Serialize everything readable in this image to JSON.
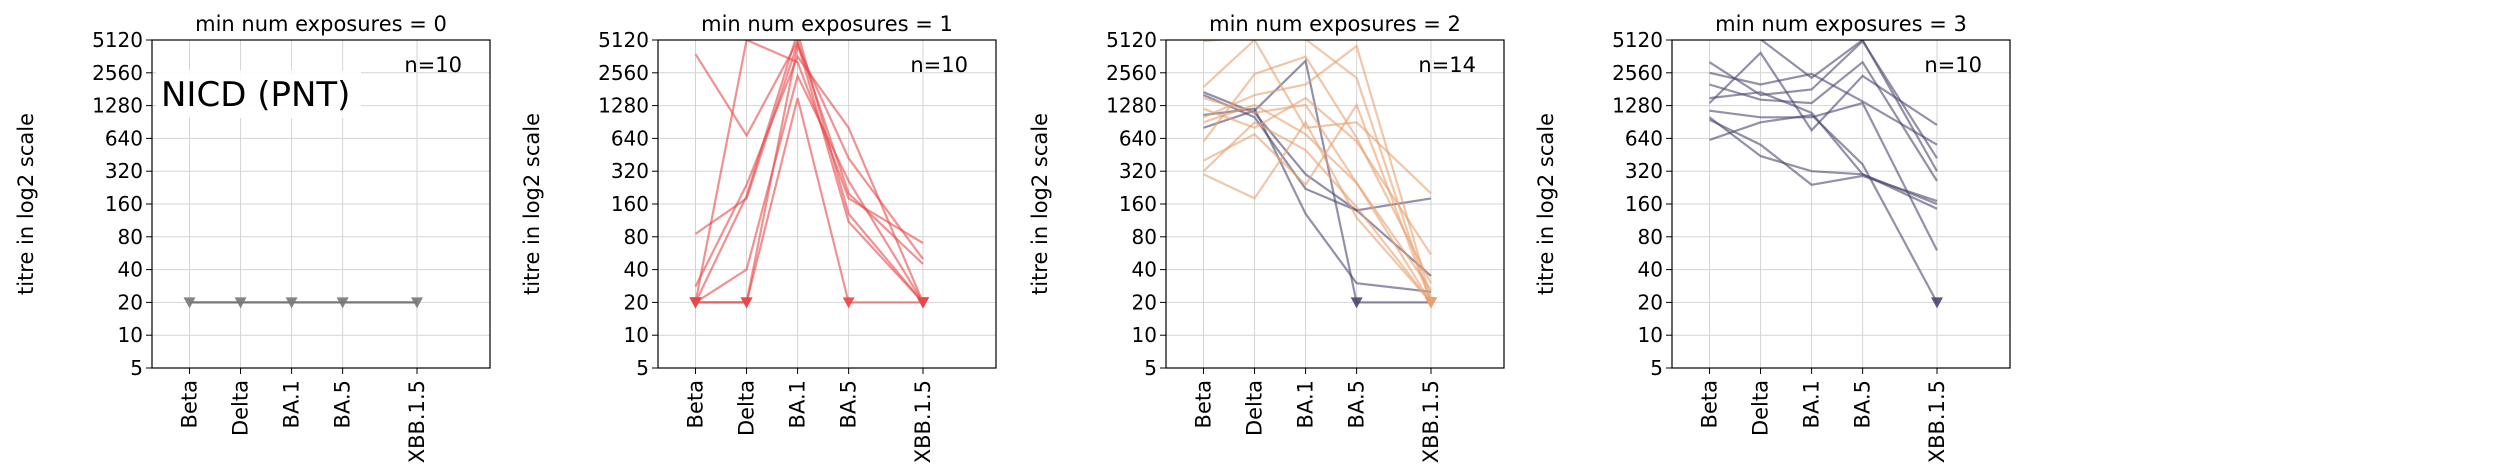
{
  "figure_label": "NICD (PNT)",
  "chart_data": [
    {
      "type": "line",
      "title": "min num exposures = 0",
      "ylabel": "titre in log2 scale",
      "xlabel": "",
      "categories": [
        "Beta",
        "Delta",
        "BA.1",
        "BA.5",
        "XBB.1.5"
      ],
      "yticks": [
        5,
        10,
        20,
        40,
        80,
        160,
        320,
        640,
        1280,
        2560,
        5120
      ],
      "ylim": [
        5,
        5120
      ],
      "yscale": "log2",
      "grid": true,
      "annotation": "n=10",
      "color": "#777777",
      "series": [
        {
          "values": [
            20,
            20,
            20,
            20,
            20
          ],
          "censored": [
            true,
            true,
            true,
            true,
            true
          ]
        }
      ]
    },
    {
      "type": "line",
      "title": "min num exposures = 1",
      "ylabel": "titre in log2 scale",
      "xlabel": "",
      "categories": [
        "Beta",
        "Delta",
        "BA.1",
        "BA.5",
        "XBB.1.5"
      ],
      "yticks": [
        5,
        10,
        20,
        40,
        80,
        160,
        320,
        640,
        1280,
        2560,
        5120
      ],
      "ylim": [
        5,
        5120
      ],
      "yscale": "log2",
      "grid": true,
      "annotation": "n=10",
      "color": "#e8474a",
      "series": [
        {
          "values": [
            20,
            20,
            1500,
            20,
            20
          ],
          "censored": [
            true,
            true,
            false,
            true,
            true
          ]
        },
        {
          "values": [
            3800,
            680,
            5000,
            200,
            45
          ],
          "censored": [
            false,
            false,
            false,
            false,
            false
          ]
        },
        {
          "values": [
            85,
            180,
            4800,
            110,
            20
          ],
          "censored": [
            false,
            false,
            false,
            false,
            true
          ]
        },
        {
          "values": [
            28,
            240,
            3600,
            800,
            20
          ],
          "censored": [
            false,
            false,
            false,
            false,
            true
          ]
        },
        {
          "values": [
            20,
            5120,
            3200,
            180,
            70
          ],
          "censored": [
            true,
            false,
            false,
            false,
            false
          ]
        },
        {
          "values": [
            20,
            40,
            2400,
            260,
            20
          ],
          "censored": [
            true,
            false,
            false,
            false,
            true
          ]
        },
        {
          "values": [
            20,
            190,
            6000,
            130,
            20
          ],
          "censored": [
            true,
            false,
            false,
            false,
            true
          ]
        },
        {
          "values": [
            20,
            20,
            4500,
            420,
            50
          ],
          "censored": [
            true,
            true,
            false,
            false,
            false
          ]
        }
      ]
    },
    {
      "type": "line",
      "title": "min num exposures = 2",
      "ylabel": "titre in log2 scale",
      "xlabel": "",
      "categories": [
        "Beta",
        "Delta",
        "BA.1",
        "BA.5",
        "XBB.1.5"
      ],
      "yticks": [
        5,
        10,
        20,
        40,
        80,
        160,
        320,
        640,
        1280,
        2560,
        5120
      ],
      "ylim": [
        5,
        5120
      ],
      "yscale": "log2",
      "grid": true,
      "annotation": "n=14",
      "color": "#e8a070",
      "secondary_color": "#4a4870",
      "series": [
        {
          "values": [
            1700,
            1100,
            300,
            140,
            180
          ],
          "censored": [
            false,
            false,
            false,
            false,
            false
          ],
          "group": "dark"
        },
        {
          "values": [
            800,
            1150,
            3300,
            20,
            20
          ],
          "censored": [
            false,
            false,
            false,
            true,
            true
          ],
          "group": "dark"
        },
        {
          "values": [
            1050,
            1200,
            130,
            30,
            25
          ],
          "censored": [
            false,
            false,
            false,
            false,
            false
          ],
          "group": "dark"
        },
        {
          "values": [
            1600,
            1000,
            220,
            140,
            35
          ],
          "censored": [
            false,
            false,
            false,
            false,
            false
          ],
          "group": "dark"
        },
        {
          "values": [
            5000,
            5500,
            5200,
            2300,
            20
          ],
          "censored": [
            false,
            false,
            false,
            false,
            true
          ]
        },
        {
          "values": [
            300,
            180,
            900,
            120,
            20
          ],
          "censored": [
            false,
            false,
            false,
            false,
            true
          ]
        },
        {
          "values": [
            1900,
            5120,
            800,
            900,
            200
          ],
          "censored": [
            false,
            false,
            false,
            false,
            false
          ]
        },
        {
          "values": [
            900,
            1300,
            700,
            250,
            20
          ],
          "censored": [
            false,
            false,
            false,
            false,
            true
          ]
        },
        {
          "values": [
            1200,
            800,
            1500,
            600,
            55
          ],
          "censored": [
            false,
            false,
            false,
            false,
            false
          ]
        },
        {
          "values": [
            600,
            2500,
            3600,
            650,
            30
          ],
          "censored": [
            false,
            false,
            false,
            false,
            false
          ]
        },
        {
          "values": [
            400,
            700,
            240,
            1300,
            20
          ],
          "censored": [
            false,
            false,
            false,
            false,
            true
          ]
        },
        {
          "values": [
            1000,
            1600,
            2000,
            4500,
            22
          ],
          "censored": [
            false,
            false,
            false,
            false,
            false
          ]
        },
        {
          "values": [
            320,
            900,
            500,
            150,
            20
          ],
          "censored": [
            false,
            false,
            false,
            false,
            true
          ]
        },
        {
          "values": [
            1500,
            1100,
            1300,
            250,
            26
          ],
          "censored": [
            false,
            false,
            false,
            false,
            false
          ]
        }
      ]
    },
    {
      "type": "line",
      "title": "min num exposures = 3",
      "ylabel": "titre in log2 scale",
      "xlabel": "",
      "categories": [
        "Beta",
        "Delta",
        "BA.1",
        "BA.5",
        "XBB.1.5"
      ],
      "yticks": [
        5,
        10,
        20,
        40,
        80,
        160,
        320,
        640,
        1280,
        2560,
        5120
      ],
      "ylim": [
        5,
        5120
      ],
      "yscale": "log2",
      "grid": true,
      "annotation": "n=10",
      "color": "#4a4870",
      "series": [
        {
          "values": [
            1000,
            440,
            320,
            300,
            145
          ],
          "censored": [
            false,
            false,
            false,
            false,
            false
          ]
        },
        {
          "values": [
            2560,
            2000,
            2500,
            1400,
            560
          ],
          "censored": [
            false,
            false,
            false,
            false,
            false
          ]
        },
        {
          "values": [
            1500,
            1700,
            1100,
            300,
            160
          ],
          "censored": [
            false,
            false,
            false,
            false,
            false
          ]
        },
        {
          "values": [
            3200,
            1600,
            1800,
            5000,
            420
          ],
          "censored": [
            false,
            false,
            false,
            false,
            false
          ]
        },
        {
          "values": [
            620,
            900,
            1050,
            370,
            20
          ],
          "censored": [
            false,
            false,
            false,
            false,
            true
          ]
        },
        {
          "values": [
            950,
            560,
            240,
            290,
            170
          ],
          "censored": [
            false,
            false,
            false,
            false,
            false
          ]
        },
        {
          "values": [
            1150,
            1000,
            1000,
            1350,
            60
          ],
          "censored": [
            false,
            false,
            false,
            false,
            false
          ]
        },
        {
          "values": [
            1350,
            3900,
            760,
            2400,
            850
          ],
          "censored": [
            false,
            false,
            false,
            false,
            false
          ]
        },
        {
          "values": [
            2000,
            1450,
            1350,
            3200,
            260
          ],
          "censored": [
            false,
            false,
            false,
            false,
            false
          ]
        },
        {
          "values": [
            5200,
            5200,
            2300,
            5120,
            320
          ],
          "censored": [
            false,
            false,
            false,
            false,
            false
          ]
        }
      ]
    }
  ]
}
